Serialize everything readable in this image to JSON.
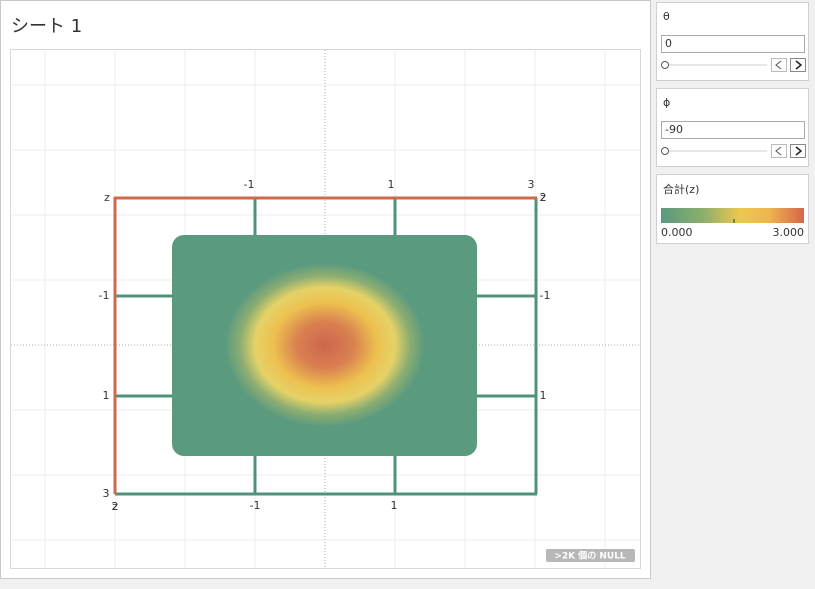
{
  "sheet": {
    "title": "シート 1",
    "null_badge": ">2K 個の NULL",
    "labels": {
      "top_left_z": "z",
      "top": [
        "-1",
        "1",
        "3"
      ],
      "top_right": [
        "z",
        "2"
      ],
      "left": [
        "-1",
        "1",
        "3"
      ],
      "bottom_left": [
        "z",
        "2"
      ],
      "bottom": [
        "-1",
        "1"
      ],
      "right": [
        "-1",
        "1"
      ]
    }
  },
  "controls": [
    {
      "label": "θ",
      "value": "0"
    },
    {
      "label": "ϕ",
      "value": "-90"
    }
  ],
  "legend": {
    "title": "合計(z)",
    "min": "0.000",
    "max": "3.000"
  }
}
